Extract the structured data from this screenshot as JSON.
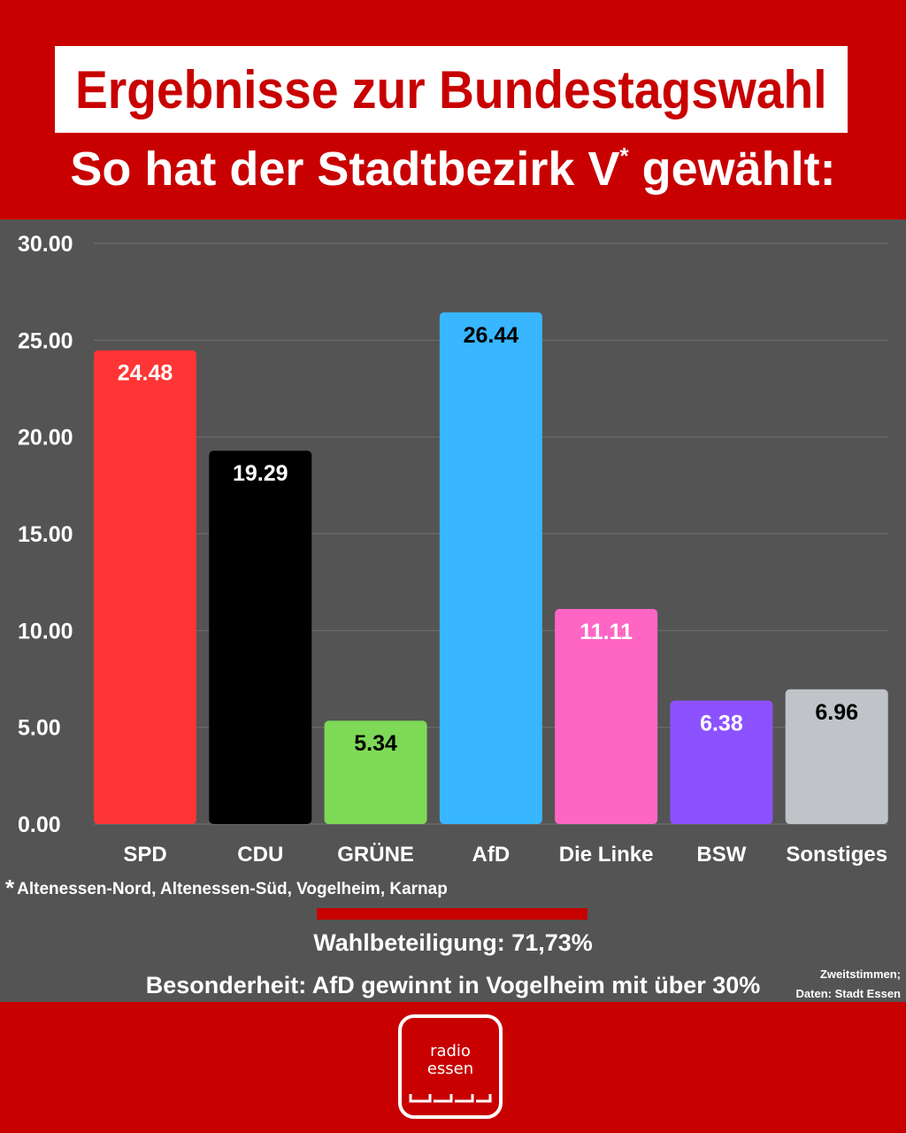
{
  "header": {
    "title": "Ergebnisse zur Bundestagswahl",
    "subtitle_main": "So hat der Stadtbezirk V",
    "subtitle_mark": "*",
    "subtitle_end": "gewählt:"
  },
  "chart_data": {
    "type": "bar",
    "categories": [
      "SPD",
      "CDU",
      "GRÜNE",
      "AfD",
      "Die Linke",
      "BSW",
      "Sonstiges"
    ],
    "values": [
      24.48,
      19.29,
      5.34,
      26.44,
      11.11,
      6.38,
      6.96
    ],
    "value_labels": [
      "24.48",
      "19.29",
      "5.34",
      "26.44",
      "11.11",
      "6.38",
      "6.96"
    ],
    "colors": [
      "#ff3535",
      "#000000",
      "#7ed957",
      "#38b6ff",
      "#ff66c4",
      "#8c52ff",
      "#c0c3c7"
    ],
    "label_colors": [
      "#ffffff",
      "#ffffff",
      "#000000",
      "#000000",
      "#ffffff",
      "#ffffff",
      "#000000"
    ],
    "ylim": [
      0,
      30
    ],
    "yticks": [
      0,
      5,
      10,
      15,
      20,
      25,
      30
    ],
    "ytick_labels": [
      "0.00",
      "5.00",
      "10.00",
      "15.00",
      "20.00",
      "25.00",
      "30.00"
    ],
    "grid": true,
    "title": "",
    "xlabel": "",
    "ylabel": ""
  },
  "footnote": {
    "mark": "*",
    "text": "Altenessen-Nord, Altenessen-Süd, Vogelheim, Karnap"
  },
  "turnout": "Wahlbeteiligung: 71,73%",
  "special": "Besonderheit: AfD gewinnt in Vogelheim mit über 30%",
  "source": {
    "line1": "Zweitstimmen;",
    "line2": "Daten: Stadt Essen"
  },
  "logo": {
    "line1": "radio",
    "line2": "essen"
  }
}
